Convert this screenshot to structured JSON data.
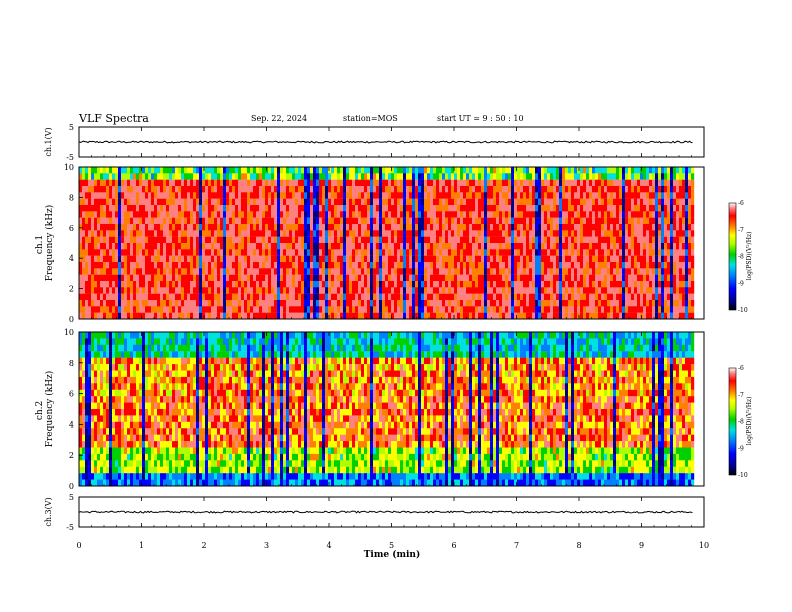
{
  "header": {
    "title": "VLF Spectra",
    "date": "Sep. 22, 2024",
    "station": "station=MOS",
    "start": "start  UT =   9 : 50 : 10"
  },
  "colors": {
    "colormap": [
      "#000000",
      "#00008b",
      "#0000ff",
      "#0080ff",
      "#00e0e0",
      "#00d000",
      "#b0ff00",
      "#ffff00",
      "#ff8000",
      "#ff0000",
      "#ff8080",
      "#ffffff"
    ]
  },
  "chart_data": [
    {
      "type": "line",
      "panel": "ch1-waveform",
      "ylabel": "ch.1(V)",
      "ylim": [
        -5,
        5
      ],
      "yticks": [
        "5",
        "-5"
      ],
      "xlim": [
        0,
        10
      ],
      "series": [
        {
          "x": [
            0,
            9.82
          ],
          "y": [
            0,
            0
          ]
        }
      ]
    },
    {
      "type": "heatmap",
      "panel": "ch1-spectrogram",
      "ylabel": "ch.1\nFrequency (kHz)",
      "ylim": [
        0,
        10
      ],
      "yticks": [
        "0",
        "2",
        "4",
        "6",
        "8",
        "10"
      ],
      "xlim": [
        0,
        10
      ],
      "colorbar": {
        "label": "log(PSD)(V²/Hz)",
        "range": [
          -10,
          -6
        ],
        "ticks": [
          "-6",
          "-7",
          "-8",
          "-9",
          "-10"
        ]
      }
    },
    {
      "type": "heatmap",
      "panel": "ch2-spectrogram",
      "ylabel": "ch.2\nFrequency (kHz)",
      "ylim": [
        0,
        10
      ],
      "yticks": [
        "0",
        "2",
        "4",
        "6",
        "8",
        "10"
      ],
      "xlim": [
        0,
        10
      ],
      "colorbar": {
        "label": "log(PSD)(V²/Hz)",
        "range": [
          -10,
          -6
        ],
        "ticks": [
          "-6",
          "-7",
          "-8",
          "-9",
          "-10"
        ]
      }
    },
    {
      "type": "line",
      "panel": "ch3-waveform",
      "ylabel": "ch.3(V)",
      "ylim": [
        -5,
        5
      ],
      "yticks": [
        "5",
        "-5"
      ],
      "xlim": [
        0,
        10
      ],
      "series": [
        {
          "x": [
            0,
            9.82
          ],
          "y": [
            0,
            0
          ]
        }
      ]
    }
  ],
  "xaxis": {
    "label": "Time (min)",
    "ticks": [
      "0",
      "1",
      "2",
      "3",
      "4",
      "5",
      "6",
      "7",
      "8",
      "9",
      "10"
    ]
  }
}
